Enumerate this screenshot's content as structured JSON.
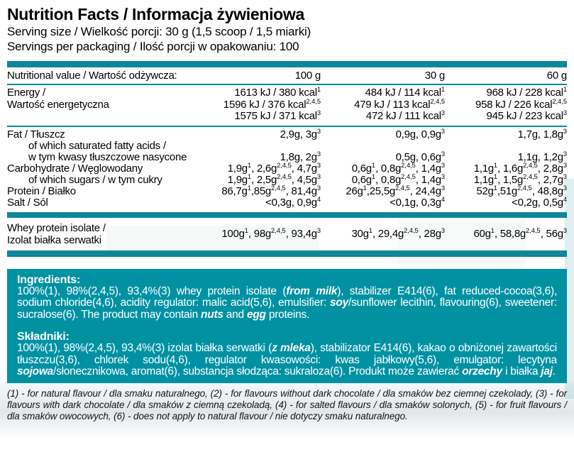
{
  "header": {
    "title": "Nutrition Facts / Informacja żywieniowa",
    "serving_size": "Serving size / Wielkość porcji: 30 g (1,5 scoop / 1,5 miarki)",
    "servings_per_packaging": "Servings per packaging / Ilość porcji w opakowaniu: 100"
  },
  "table": {
    "header": {
      "label": "Nutritional value / Wartość odżywcza:",
      "columns": [
        "100 g",
        "30 g",
        "60 g"
      ]
    },
    "rows": [
      {
        "name": "row-energy",
        "section": "energy",
        "valign": "top",
        "label_lines": [
          "Energy /",
          "Wartość energetyczna"
        ],
        "values": [
          [
            "1613 kJ / 380 kcal^{1}",
            "1596 kJ / 376 kcal^{2,4,5}",
            "1575 kJ / 371 kcal^{3}"
          ],
          [
            "484 kJ / 114 kcal^{1}",
            "479 kJ / 113 kcal^{2,4,5}",
            "472 kJ / 111 kcal^{3}"
          ],
          [
            "968 kJ / 228 kcal^{1}",
            "958 kJ / 226 kcal^{2,4,5}",
            "945 kJ / 223 kcal^{3}"
          ]
        ]
      },
      {
        "name": "row-fat",
        "section": "main",
        "valign": "top",
        "label_lines": [
          "Fat / Tłuszcz"
        ],
        "values": [
          [
            "2,9g, 3g^{3}"
          ],
          [
            "0,9g, 0,9g^{3}"
          ],
          [
            "1,7g, 1,8g^{3}"
          ]
        ]
      },
      {
        "name": "row-saturated-fat",
        "section": "main",
        "valign": "bottom",
        "indent": true,
        "label_lines": [
          "of which saturated fatty acids /",
          "w tym kwasy tłuszczowe nasycone"
        ],
        "values": [
          [
            "1,8g, 2g^{3}"
          ],
          [
            "0,5g, 0,6g^{3}"
          ],
          [
            "1,1g, 1,2g^{3}"
          ]
        ]
      },
      {
        "name": "row-carbohydrate",
        "section": "main",
        "valign": "top",
        "label_lines": [
          "Carbohydrate / Węglowodany"
        ],
        "values": [
          [
            "1,9g^{1}, 2,6g^{2,4,5}, 4,7g^{3}"
          ],
          [
            "0,6g^{1}, 0,8g^{2,4,5}, 1,4g^{3}"
          ],
          [
            "1,1g^{1}, 1,6g^{2,4,5}, 2,8g^{3}"
          ]
        ]
      },
      {
        "name": "row-sugars",
        "section": "main",
        "valign": "top",
        "indent": true,
        "label_lines": [
          "of which sugars / w tym cukry"
        ],
        "values": [
          [
            "1,9g^{1}, 2,5g^{2,4,5}, 4,5g^{3}"
          ],
          [
            "0,6g^{1}, 0,8g^{2,4,5}, 1,4g^{3}"
          ],
          [
            "1,1g^{1}, 1,5g^{2,4,5}, 2,7g^{3}"
          ]
        ]
      },
      {
        "name": "row-protein",
        "section": "main",
        "valign": "top",
        "label_lines": [
          "Protein / Białko"
        ],
        "values": [
          [
            "86,7g^{1},85g^{2,4,5}, 81,4g^{3}"
          ],
          [
            "26g^{1},25,5g^{2,4,5}, 24,4g^{3}"
          ],
          [
            "52g^{1},51g^{2,4,5}, 48,8g^{3}"
          ]
        ]
      },
      {
        "name": "row-salt",
        "section": "main",
        "valign": "top",
        "label_lines": [
          "Salt / Sól"
        ],
        "values": [
          [
            "<0,3g, 0,9g^{4}"
          ],
          [
            "<0,1g, 0,3g^{4}"
          ],
          [
            "<0,2g, 0,5g^{4}"
          ]
        ]
      },
      {
        "name": "row-whey-protein-isolate",
        "section": "whey",
        "valign": "center",
        "label_lines": [
          "Whey protein isolate /",
          "Izolat białka serwatki"
        ],
        "values": [
          [
            "100g^{1}, 98g^{2,4,5}, 93,4g^{3}"
          ],
          [
            "30g^{1}, 29,4g^{2,4,5}, 28g^{3}"
          ],
          [
            "60g^{1}, 58,8g^{2,4,5}, 56g^{3}"
          ]
        ]
      }
    ]
  },
  "ingredients": {
    "heading_en": "Ingredients:",
    "body_en": "100%(1), 98%(2,4,5), 93,4%(3) whey protein isolate (**from milk**), stabilizer E414(6), fat reduced-cocoa(3,6), sodium chloride(4,6), acidity regulator: malic acid(5,6), emulsifier: **soy**/sunflower lecithin, flavouring(6), sweetener: sucralose(6). The product may contain **nuts** and **egg** proteins.",
    "heading_pl": "Składniki:",
    "body_pl": "100%(1), 98%(2,4,5), 93,4%(3) izolat białka serwatki (**z mleka**), stabilizator E414(6), kakao o obniżonej zawartości tłuszczu(3,6), chlorek sodu(4,6), regulator kwasowości: kwas jabłkowy(5,6), emulgator: lecytyna **sojowa**/słonecznikowa, aromat(6), substancja słodząca: sukraloza(6). Produkt może zawierać **orzechy** i białka **jaj**."
  },
  "footnotes": "(1) - for natural flavour / dla smaku naturalnego, (2) - for flavours without dark chocolate / dla smaków bez ciemnej czekolady, (3) - for flavours with dark chocolate / dla smaków z ciemną czekoladą, (4) - for salted flavours / dla smaków solonych, (5) - for fruit flavours / dla smaków owocowych, (6) - does not apply to natural flavour / nie dotyczy smaku naturalnego.",
  "colors": {
    "teal_bar": "#0d8799",
    "teal_box": "#0092a3",
    "text": "#000000",
    "footnote_text": "#141414"
  }
}
